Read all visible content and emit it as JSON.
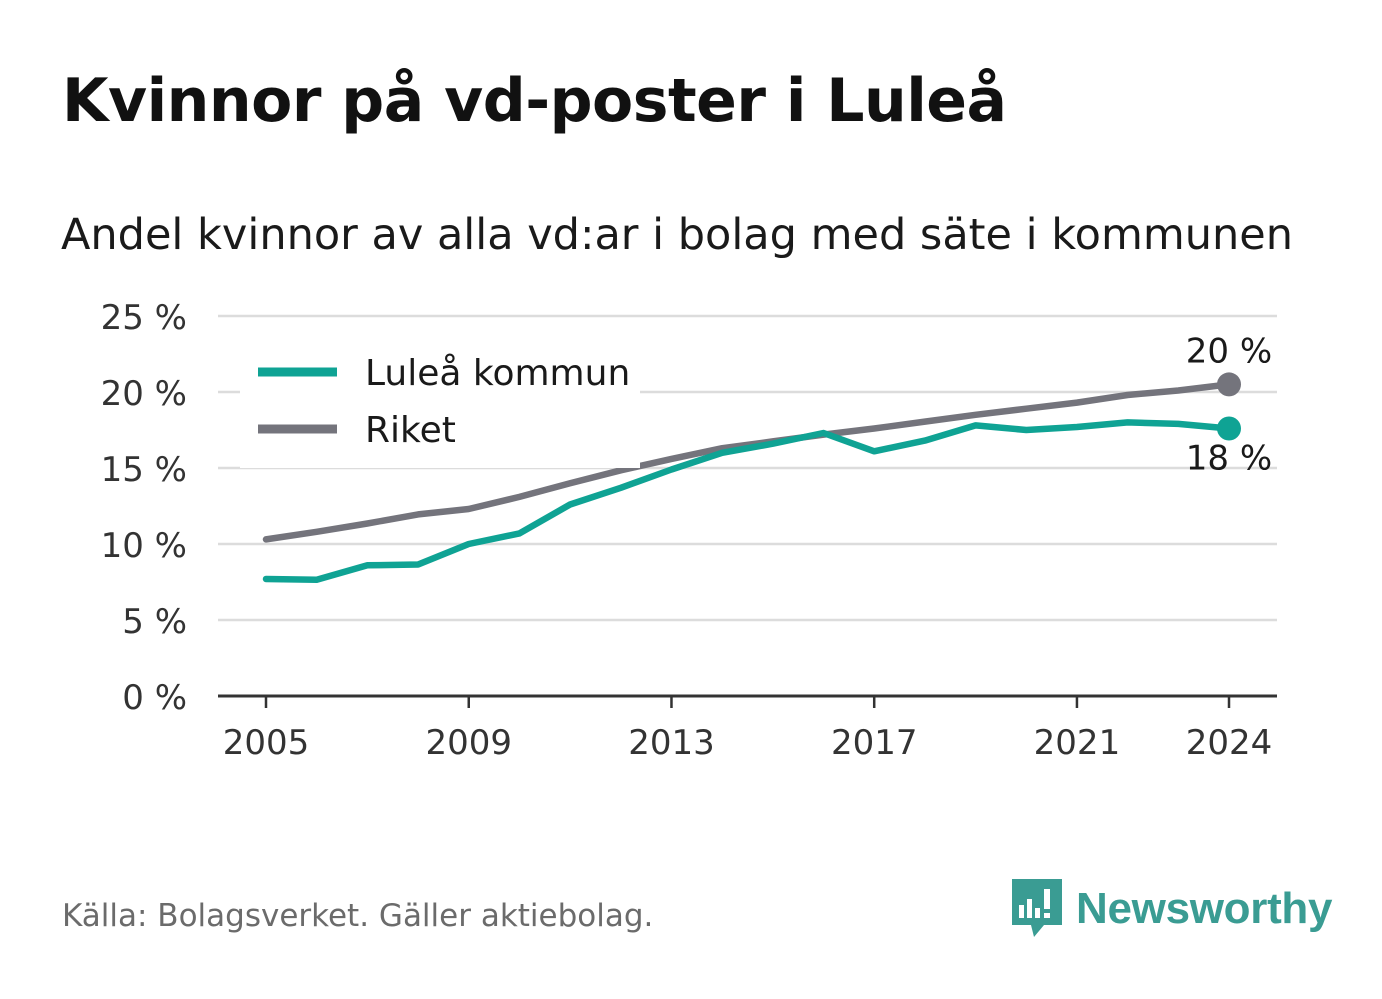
{
  "header": {
    "title": "Kvinnor på vd-poster i Luleå",
    "subtitle": "Andel kvinnor av alla vd:ar i bolag med säte i kommunen"
  },
  "footer": {
    "source": "Källa: Bolagsverket. Gäller aktiebolag.",
    "brand": "Newsworthy",
    "brand_icon": "newsworthy-logo-icon"
  },
  "colors": {
    "lulea": "#0fa394",
    "riket": "#74747c",
    "grid": "#dcdcdc",
    "axis": "#333333",
    "brand": "#3a9c93"
  },
  "chart_data": {
    "type": "line",
    "ylim": [
      0,
      25
    ],
    "yticks": [
      0,
      5,
      10,
      15,
      20,
      25
    ],
    "ytick_labels": [
      "0 %",
      "5 %",
      "10 %",
      "15 %",
      "20 %",
      "25 %"
    ],
    "xticks": [
      2005,
      2009,
      2013,
      2017,
      2021,
      2024
    ],
    "xtick_labels": [
      "2005",
      "2009",
      "2013",
      "2017",
      "2021",
      "2024"
    ],
    "x": [
      2005,
      2006,
      2007,
      2008,
      2009,
      2010,
      2011,
      2012,
      2013,
      2014,
      2015,
      2016,
      2017,
      2018,
      2019,
      2020,
      2021,
      2022,
      2023,
      2024
    ],
    "legend_position": "top-left",
    "grid": true,
    "series": [
      {
        "key": "lulea",
        "name": "Luleå kommun",
        "values": [
          7.7,
          7.65,
          8.6,
          8.65,
          10.0,
          10.7,
          12.6,
          13.7,
          14.9,
          16.0,
          16.6,
          17.3,
          16.1,
          16.8,
          17.8,
          17.5,
          17.7,
          18.0,
          17.9,
          17.6
        ],
        "end_label": "18 %"
      },
      {
        "key": "riket",
        "name": "Riket",
        "values": [
          10.3,
          10.8,
          11.35,
          11.95,
          12.3,
          13.1,
          14.0,
          14.85,
          15.6,
          16.3,
          16.75,
          17.2,
          17.6,
          18.05,
          18.5,
          18.9,
          19.3,
          19.8,
          20.1,
          20.5
        ],
        "end_label": "20 %"
      }
    ]
  }
}
